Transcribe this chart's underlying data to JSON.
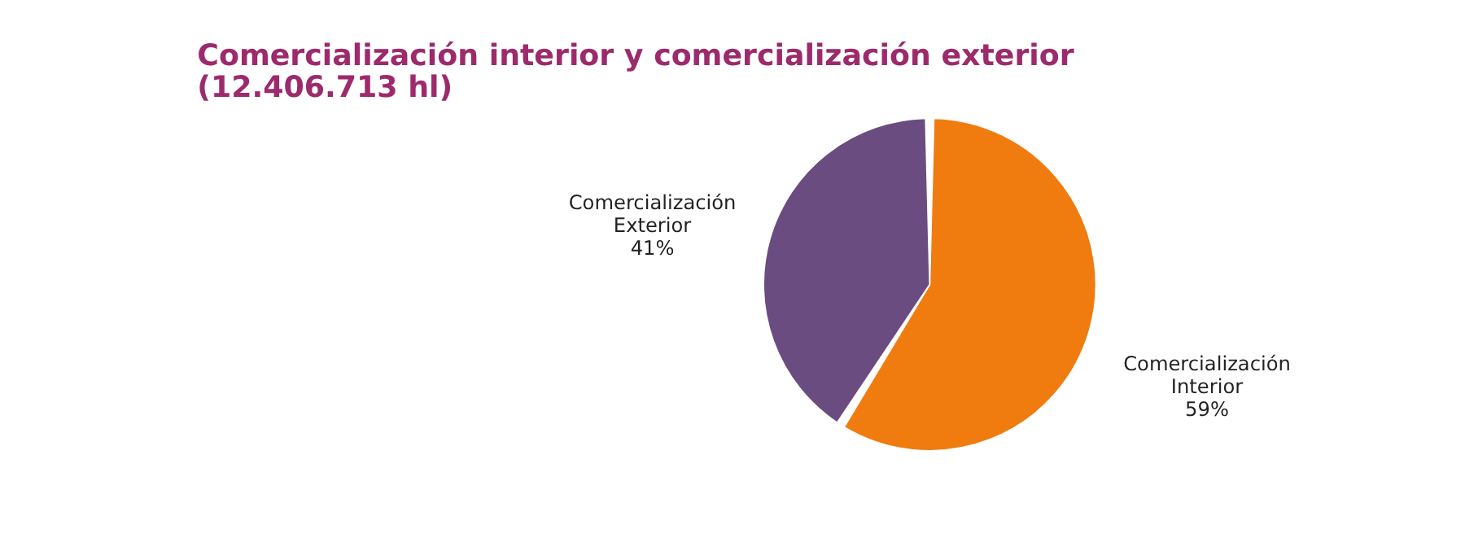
{
  "chart_data": {
    "type": "pie",
    "title": "Comercialización interior y comercialización exterior (12.406.713 hl)",
    "categories": [
      "Comercialización Interior",
      "Comercialización Exterior"
    ],
    "values": [
      59,
      41
    ],
    "value_labels": [
      "59%",
      "41%"
    ],
    "colors": [
      "#f07b0f",
      "#6a4c80"
    ],
    "legend": false
  }
}
